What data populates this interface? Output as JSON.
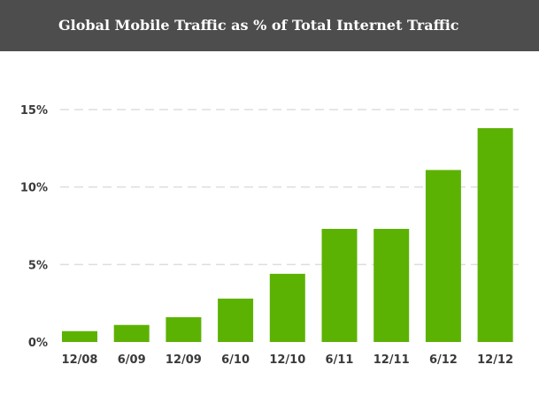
{
  "header": {
    "title": "Global Mobile Traffic as % of Total Internet Traffic"
  },
  "colors": {
    "header_bg": "#4d4d4d",
    "bar": "#5cb203",
    "grid": "#dddddd",
    "text": "#3a3a3a"
  },
  "chart_data": {
    "type": "bar",
    "title": "Global Mobile Traffic as % of Total Internet Traffic",
    "xlabel": "",
    "ylabel": "",
    "categories": [
      "12/08",
      "6/09",
      "12/09",
      "6/10",
      "12/10",
      "6/11",
      "12/11",
      "6/12",
      "12/12"
    ],
    "values": [
      0.7,
      1.1,
      1.6,
      2.8,
      4.4,
      7.3,
      7.3,
      11.1,
      13.8
    ],
    "ylim": [
      0,
      15
    ],
    "yticks": [
      0,
      5,
      10,
      15
    ],
    "ytick_labels": [
      "0%",
      "5%",
      "10%",
      "15%"
    ],
    "grid": true,
    "grid_style": "dashed",
    "legend": "none"
  }
}
